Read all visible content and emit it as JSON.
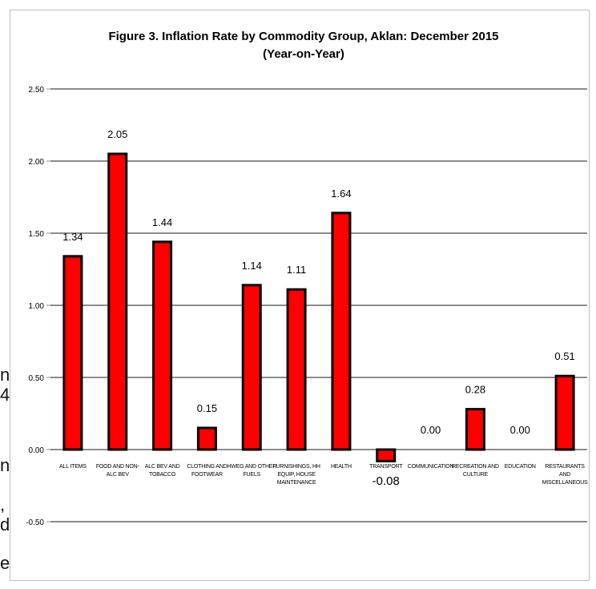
{
  "page": {
    "edge_fragments": [
      "n",
      "4",
      "n",
      ",",
      "d",
      "e"
    ]
  },
  "chart_data": {
    "type": "bar",
    "title": "Figure 3. Inflation Rate by Commodity Group, Aklan: December 2015",
    "subtitle": "(Year-on-Year)",
    "xlabel": "",
    "ylabel": "",
    "ylim": [
      -0.5,
      2.5
    ],
    "yticks": [
      "2.50",
      "2.00",
      "1.50",
      "1.00",
      "0.50",
      "0.00",
      "-0.50"
    ],
    "ytick_values": [
      2.5,
      2.0,
      1.5,
      1.0,
      0.5,
      0.0,
      -0.5
    ],
    "grid": true,
    "legend": "none",
    "colors": {
      "bar_fill": "#ff0000",
      "bar_stroke": "#000000",
      "grid": "#8c8c8c"
    },
    "categories": [
      [
        "ALL ITEMS"
      ],
      [
        "FOOD AND NON-",
        "ALC BEV"
      ],
      [
        "ALC BEV AND",
        "TOBACCO"
      ],
      [
        "CLOTHING AND",
        "FOOTWEAR"
      ],
      [
        "HWEG AND OTHER",
        "FUELS"
      ],
      [
        "FURNISHINGS, HH",
        "EQUIP, HOUSE",
        "MAINTENANCE"
      ],
      [
        "HEALTH"
      ],
      [
        "TRANSPORT"
      ],
      [
        "COMMUNICATION"
      ],
      [
        "RECREATION AND",
        "CULTURE"
      ],
      [
        "EDUCATION"
      ],
      [
        "RESTAURANTS",
        "AND",
        "MISCELLANEOUS"
      ]
    ],
    "values": [
      1.34,
      2.05,
      1.44,
      0.15,
      1.14,
      1.11,
      1.64,
      -0.08,
      0.0,
      0.28,
      0.0,
      0.51
    ],
    "data_labels": [
      "1.34",
      "2.05",
      "1.44",
      "0.15",
      "1.14",
      "1.11",
      "1.64",
      "-0.08",
      "0.00",
      "0.28",
      "0.00",
      "0.51"
    ]
  }
}
